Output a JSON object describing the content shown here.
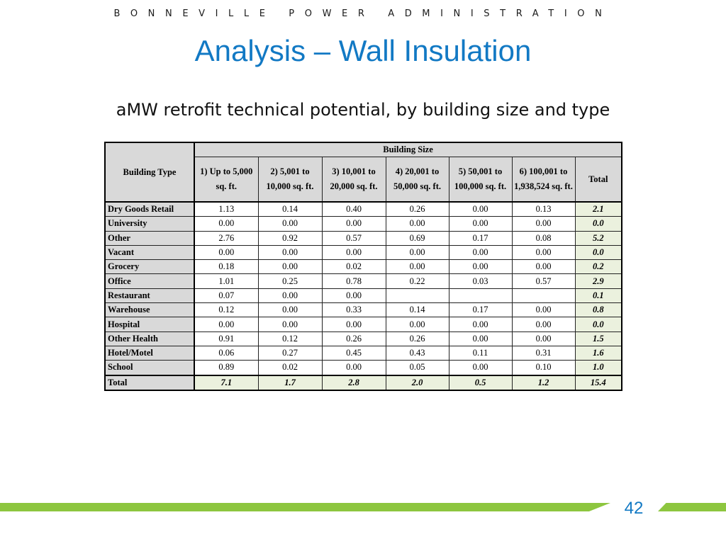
{
  "header": {
    "org": "BONNEVILLE POWER ADMINISTRATION"
  },
  "slide": {
    "title": "Analysis – Wall Insulation",
    "subtitle": "aMW retrofit technical potential, by building size and type",
    "page_number": "42"
  },
  "colors": {
    "title": "#1279c4",
    "accent_bar": "#8dc63f",
    "header_fill": "#d9d9d9",
    "total_fill": "#ebf1de"
  },
  "table": {
    "row_header": "Building Type",
    "group_header": "Building Size",
    "columns": [
      "1) Up to 5,000 sq. ft.",
      "2) 5,001 to 10,000 sq. ft.",
      "3) 10,001 to 20,000 sq. ft.",
      "4) 20,001 to 50,000 sq. ft.",
      "5) 50,001 to 100,000 sq. ft.",
      "6) 100,001 to 1,938,524 sq. ft.",
      "Total"
    ],
    "rows": [
      {
        "type": "Dry Goods Retail",
        "values": [
          "1.13",
          "0.14",
          "0.40",
          "0.26",
          "0.00",
          "0.13"
        ],
        "total": "2.1"
      },
      {
        "type": "University",
        "values": [
          "0.00",
          "0.00",
          "0.00",
          "0.00",
          "0.00",
          "0.00"
        ],
        "total": "0.0"
      },
      {
        "type": "Other",
        "values": [
          "2.76",
          "0.92",
          "0.57",
          "0.69",
          "0.17",
          "0.08"
        ],
        "total": "5.2"
      },
      {
        "type": "Vacant",
        "values": [
          "0.00",
          "0.00",
          "0.00",
          "0.00",
          "0.00",
          "0.00"
        ],
        "total": "0.0"
      },
      {
        "type": "Grocery",
        "values": [
          "0.18",
          "0.00",
          "0.02",
          "0.00",
          "0.00",
          "0.00"
        ],
        "total": "0.2"
      },
      {
        "type": "Office",
        "values": [
          "1.01",
          "0.25",
          "0.78",
          "0.22",
          "0.03",
          "0.57"
        ],
        "total": "2.9"
      },
      {
        "type": "Restaurant",
        "values": [
          "0.07",
          "0.00",
          "0.00",
          "",
          "",
          ""
        ],
        "total": "0.1"
      },
      {
        "type": "Warehouse",
        "values": [
          "0.12",
          "0.00",
          "0.33",
          "0.14",
          "0.17",
          "0.00"
        ],
        "total": "0.8"
      },
      {
        "type": "Hospital",
        "values": [
          "0.00",
          "0.00",
          "0.00",
          "0.00",
          "0.00",
          "0.00"
        ],
        "total": "0.0"
      },
      {
        "type": "Other Health",
        "values": [
          "0.91",
          "0.12",
          "0.26",
          "0.26",
          "0.00",
          "0.00"
        ],
        "total": "1.5"
      },
      {
        "type": "Hotel/Motel",
        "values": [
          "0.06",
          "0.27",
          "0.45",
          "0.43",
          "0.11",
          "0.31"
        ],
        "total": "1.6"
      },
      {
        "type": "School",
        "values": [
          "0.89",
          "0.02",
          "0.00",
          "0.05",
          "0.00",
          "0.10"
        ],
        "total": "1.0"
      }
    ],
    "total_row": {
      "type": "Total",
      "values": [
        "7.1",
        "1.7",
        "2.8",
        "2.0",
        "0.5",
        "1.2"
      ],
      "total": "15.4"
    }
  }
}
